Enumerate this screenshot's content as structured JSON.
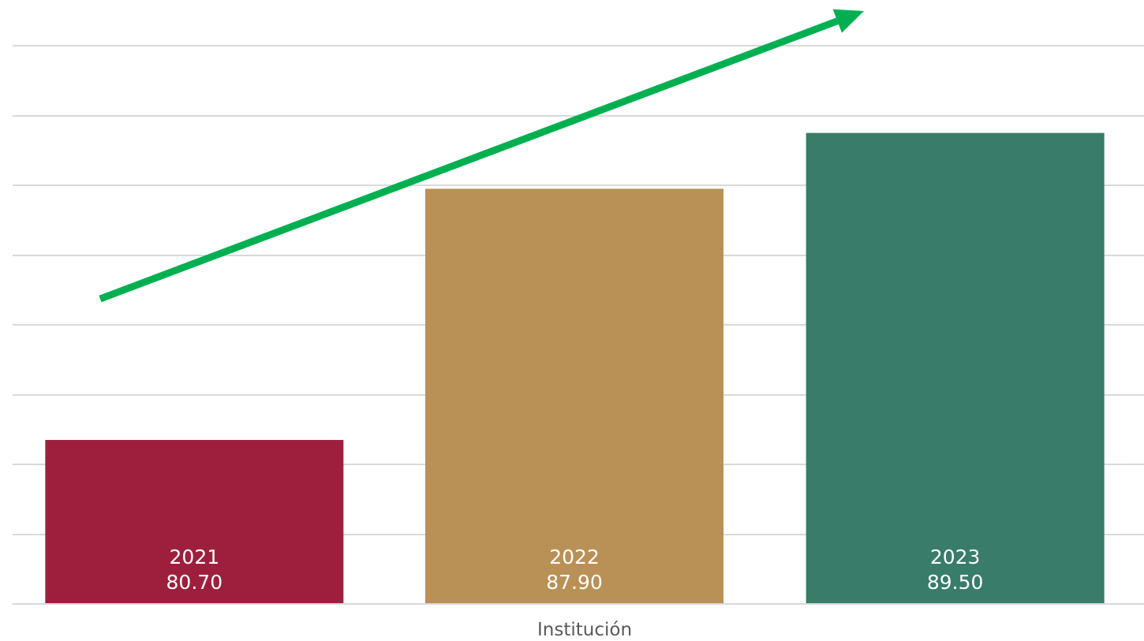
{
  "chart_data": {
    "type": "bar",
    "categories": [
      "2021",
      "2022",
      "2023"
    ],
    "values": [
      80.7,
      87.9,
      89.5
    ],
    "value_labels": [
      "80.70",
      "87.90",
      "89.50"
    ],
    "xlabel": "Institución",
    "ylabel": "",
    "ylim": [
      76,
      92
    ],
    "grid": true,
    "legend": "none",
    "trend_arrow": {
      "direction": "up",
      "color": "#00b050"
    },
    "colors": [
      "#9e1f3d",
      "#b99157",
      "#387c69"
    ]
  }
}
